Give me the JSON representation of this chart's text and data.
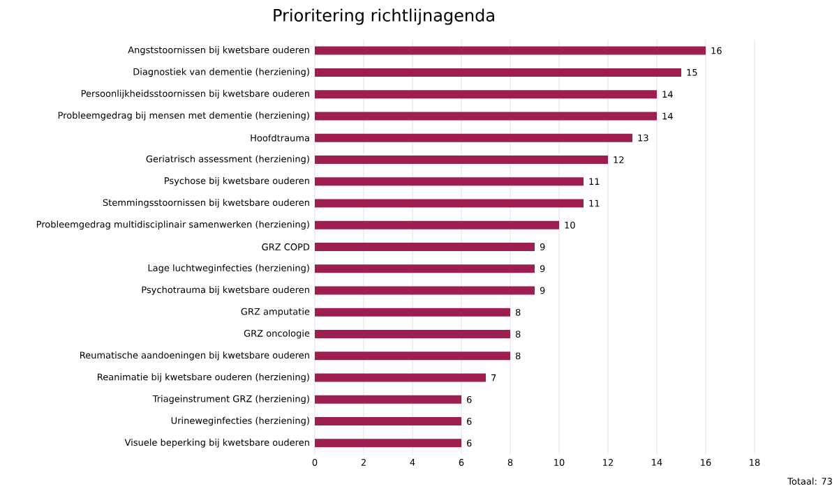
{
  "chart_data": {
    "type": "bar",
    "orientation": "horizontal",
    "title": "Prioritering richtlijnagenda",
    "categories": [
      "Angststoornissen bij kwetsbare ouderen",
      "Diagnostiek van dementie (herziening)",
      "Persoonlijkheidsstoornissen bij kwetsbare ouderen",
      "Probleemgedrag bij mensen met dementie (herziening)",
      "Hoofdtrauma",
      "Geriatrisch assessment (herziening)",
      "Psychose bij kwetsbare ouderen",
      "Stemmingsstoornissen bij kwetsbare ouderen",
      "Probleemgedrag multidisciplinair samenwerken (herziening)",
      "GRZ COPD",
      "Lage luchtweginfecties (herziening)",
      "Psychotrauma bij kwetsbare ouderen",
      "GRZ amputatie",
      "GRZ oncologie",
      "Reumatische aandoeningen bij kwetsbare ouderen",
      "Reanimatie bij kwetsbare ouderen (herziening)",
      "Triageinstrument GRZ (herziening)",
      "Urineweginfecties (herziening)",
      "Visuele beperking bij kwetsbare ouderen"
    ],
    "values": [
      16,
      15,
      14,
      14,
      13,
      12,
      11,
      11,
      10,
      9,
      9,
      9,
      8,
      8,
      8,
      7,
      6,
      6,
      6
    ],
    "color": "#9e1f4f",
    "xlim": [
      0,
      18
    ],
    "xticks": [
      0,
      2,
      4,
      6,
      8,
      10,
      12,
      14,
      16,
      18
    ],
    "grid": "x",
    "data_labels": true,
    "annotations": [
      "Totaal: 73"
    ]
  }
}
